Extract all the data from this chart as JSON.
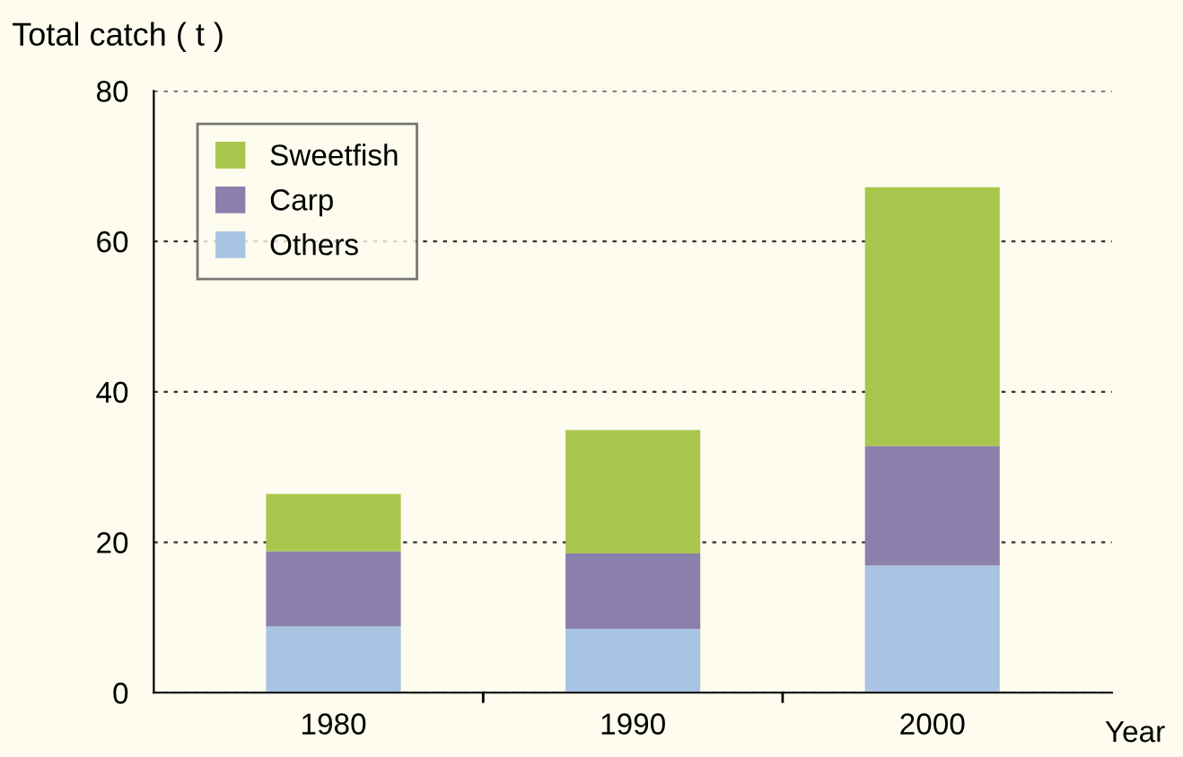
{
  "chart_data": {
    "type": "bar",
    "stacked": true,
    "xlabel": "Year",
    "ylabel": "Total catch ( t )",
    "categories": [
      "1980",
      "1990",
      "2000"
    ],
    "series": [
      {
        "name": "Others",
        "color": "#a9c3e2",
        "values": [
          8.8,
          8.5,
          16.9
        ]
      },
      {
        "name": "Carp",
        "color": "#8b7fab",
        "values": [
          10,
          10,
          15.9
        ]
      },
      {
        "name": "Sweetfish",
        "color": "#a9c64c",
        "values": [
          7.6,
          16.4,
          34.4
        ]
      }
    ],
    "ylim": [
      0,
      80
    ],
    "yticks": [
      0,
      20,
      40,
      60,
      80
    ],
    "grid": "y",
    "legend": "top left"
  }
}
